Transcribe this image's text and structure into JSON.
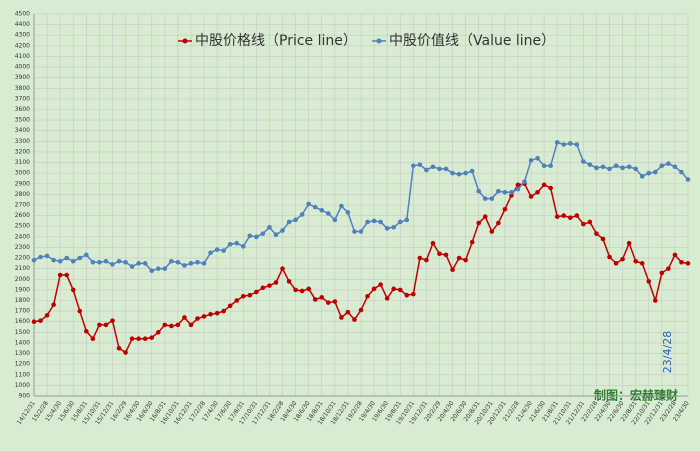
{
  "chart_data": {
    "type": "line",
    "categories": [
      "14/12/31",
      null,
      "15/2/28",
      null,
      "15/4/30",
      null,
      "15/6/30",
      null,
      "15/8/31",
      null,
      "15/10/31",
      null,
      "15/12/31",
      null,
      "16/2/29",
      null,
      "16/4/30",
      null,
      "16/6/30",
      null,
      "16/8/31",
      null,
      "16/10/31",
      null,
      "16/12/31",
      null,
      "17/2/28",
      null,
      "17/4/30",
      null,
      "17/6/30",
      null,
      "17/8/31",
      null,
      "17/10/31",
      null,
      "17/12/31",
      null,
      "18/2/28",
      null,
      "18/4/30",
      null,
      "18/6/30",
      null,
      "18/8/31",
      null,
      "18/10/31",
      null,
      "18/12/31",
      null,
      "19/2/28",
      null,
      "19/4/30",
      null,
      "19/6/30",
      null,
      "19/8/31",
      null,
      "19/10/31",
      null,
      "19/12/31",
      null,
      "20/2/29",
      null,
      "20/4/30",
      null,
      "20/6/30",
      null,
      "20/8/31",
      null,
      "20/10/31",
      null,
      "20/12/31",
      null,
      "21/2/28",
      null,
      "21/4/30",
      null,
      "21/6/30",
      null,
      "21/8/31",
      null,
      "21/10/31",
      null,
      "21/12/31",
      null,
      "22/2/28",
      null,
      "22/4/30",
      null,
      "22/6/30",
      null,
      "22/8/31",
      null,
      "22/10/31",
      null,
      "22/12/31",
      null,
      "23/2/28",
      null,
      "23/4/30"
    ],
    "series": [
      {
        "name": "中股价格线（Price line）",
        "color": "#c00000",
        "values": [
          1600,
          1610,
          1660,
          1760,
          2040,
          2040,
          1900,
          1700,
          1510,
          1440,
          1570,
          1570,
          1610,
          1350,
          1310,
          1440,
          1440,
          1440,
          1450,
          1500,
          1570,
          1560,
          1570,
          1640,
          1570,
          1630,
          1650,
          1670,
          1680,
          1700,
          1750,
          1800,
          1840,
          1850,
          1880,
          1920,
          1940,
          1970,
          2100,
          1980,
          1900,
          1890,
          1910,
          1810,
          1830,
          1780,
          1790,
          1640,
          1690,
          1620,
          1710,
          1840,
          1910,
          1950,
          1820,
          1910,
          1900,
          1850,
          1860,
          2200,
          2180,
          2340,
          2240,
          2230,
          2090,
          2200,
          2180,
          2350,
          2530,
          2590,
          2450,
          2530,
          2660,
          2790,
          2890,
          2900,
          2780,
          2820,
          2890,
          2860,
          2590,
          2600,
          2580,
          2600,
          2520,
          2540,
          2430,
          2380,
          2210,
          2150,
          2190,
          2340,
          2170,
          2150,
          1980,
          1800,
          2060,
          2100,
          2230,
          2160,
          2150
        ]
      },
      {
        "name": "中股价值线（Value line）",
        "color": "#4f81bd",
        "values": [
          2180,
          2210,
          2220,
          2180,
          2170,
          2200,
          2170,
          2200,
          2230,
          2160,
          2160,
          2170,
          2140,
          2170,
          2160,
          2120,
          2150,
          2150,
          2080,
          2100,
          2100,
          2170,
          2160,
          2130,
          2150,
          2160,
          2150,
          2250,
          2280,
          2270,
          2330,
          2340,
          2310,
          2410,
          2400,
          2430,
          2490,
          2420,
          2460,
          2540,
          2560,
          2610,
          2710,
          2680,
          2650,
          2620,
          2560,
          2690,
          2630,
          2450,
          2450,
          2540,
          2550,
          2540,
          2480,
          2490,
          2540,
          2560,
          3070,
          3080,
          3030,
          3060,
          3040,
          3040,
          3000,
          2990,
          3000,
          3020,
          2830,
          2760,
          2760,
          2830,
          2820,
          2820,
          2850,
          2920,
          3120,
          3140,
          3070,
          3070,
          3290,
          3270,
          3280,
          3270,
          3110,
          3080,
          3050,
          3060,
          3040,
          3070,
          3050,
          3060,
          3040,
          2970,
          3000,
          3010,
          3070,
          3090,
          3060,
          3010,
          2940
        ]
      }
    ],
    "ylim": [
      900,
      4500
    ],
    "yticks": [
      900,
      1000,
      1100,
      1200,
      1300,
      1400,
      1500,
      1600,
      1700,
      1800,
      1900,
      2000,
      2100,
      2200,
      2300,
      2400,
      2500,
      2600,
      2700,
      2800,
      2900,
      3000,
      3100,
      3200,
      3300,
      3400,
      3500,
      3600,
      3700,
      3800,
      3900,
      4000,
      4100,
      4200,
      4300,
      4400,
      4500
    ],
    "grid": true,
    "legend": "top",
    "background": "#d8ecd2",
    "annotations": [
      "23/4/28",
      "制图：宏赫臻财"
    ]
  }
}
